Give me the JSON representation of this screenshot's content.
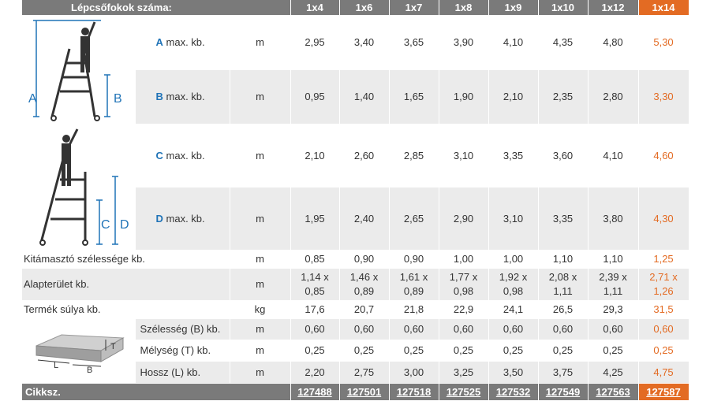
{
  "header": {
    "title": "Lépcsőfokok száma:",
    "columns": [
      "1x4",
      "1x6",
      "1x7",
      "1x8",
      "1x9",
      "1x10",
      "1x12",
      "1x14"
    ]
  },
  "rows": {
    "A": {
      "letter": "A",
      "label": "max. kb.",
      "unit": "m",
      "values": [
        "2,95",
        "3,40",
        "3,65",
        "3,90",
        "4,10",
        "4,35",
        "4,80",
        "5,30"
      ]
    },
    "B": {
      "letter": "B",
      "label": "max. kb.",
      "unit": "m",
      "values": [
        "0,95",
        "1,40",
        "1,65",
        "1,90",
        "2,10",
        "2,35",
        "2,80",
        "3,30"
      ]
    },
    "C": {
      "letter": "C",
      "label": "max. kb.",
      "unit": "m",
      "values": [
        "2,10",
        "2,60",
        "2,85",
        "3,10",
        "3,35",
        "3,60",
        "4,10",
        "4,60"
      ]
    },
    "D": {
      "letter": "D",
      "label": "max. kb.",
      "unit": "m",
      "values": [
        "1,95",
        "2,40",
        "2,65",
        "2,90",
        "3,10",
        "3,35",
        "3,80",
        "4,30"
      ]
    },
    "kitamaszto": {
      "label": "Kitámasztó szélessége kb.",
      "unit": "m",
      "values": [
        "0,85",
        "0,90",
        "0,90",
        "1,00",
        "1,00",
        "1,10",
        "1,10",
        "1,25"
      ]
    },
    "alapterulet": {
      "label": "Alapterület kb.",
      "unit": "m",
      "line1": [
        "1,14 x",
        "1,46 x",
        "1,61 x",
        "1,77 x",
        "1,92 x",
        "2,08 x",
        "2,39 x",
        "2,71 x"
      ],
      "line2": [
        "0,85",
        "0,89",
        "0,89",
        "0,98",
        "0,98",
        "1,11",
        "1,11",
        "1,26"
      ]
    },
    "suly": {
      "label": "Termék súlya kb.",
      "unit": "kg",
      "values": [
        "17,6",
        "20,7",
        "21,8",
        "22,9",
        "24,1",
        "26,5",
        "29,3",
        "31,5"
      ]
    },
    "szelesseg": {
      "label": "Szélesség (B) kb.",
      "unit": "m",
      "values": [
        "0,60",
        "0,60",
        "0,60",
        "0,60",
        "0,60",
        "0,60",
        "0,60",
        "0,60"
      ]
    },
    "melyseg": {
      "label": "Mélység (T) kb.",
      "unit": "m",
      "values": [
        "0,25",
        "0,25",
        "0,25",
        "0,25",
        "0,25",
        "0,25",
        "0,25",
        "0,25"
      ]
    },
    "hossz": {
      "label": "Hossz (L) kb.",
      "unit": "m",
      "values": [
        "2,20",
        "2,75",
        "3,00",
        "3,25",
        "3,50",
        "3,75",
        "4,25",
        "4,75"
      ]
    }
  },
  "footer": {
    "label": "Cikksz.",
    "codes": [
      "127488",
      "127501",
      "127518",
      "127525",
      "127532",
      "127549",
      "127563",
      "127587"
    ]
  },
  "diagram_labels": {
    "A": "A",
    "B": "B",
    "C": "C",
    "D": "D",
    "T": "T",
    "L": "L",
    "Bbox": "B"
  },
  "colors": {
    "header_gray": "#7a7a7a",
    "accent_orange": "#e36b23",
    "letter_blue": "#1f73b7",
    "row_gray": "#ebebeb"
  }
}
